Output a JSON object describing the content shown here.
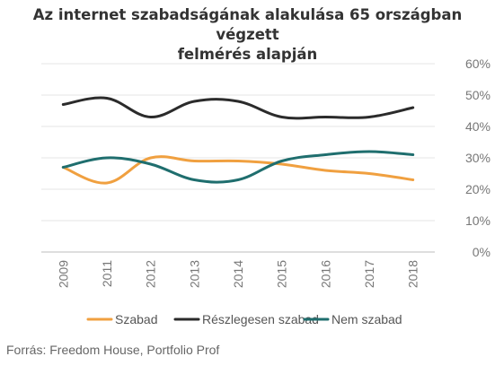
{
  "title_line1": "Az internet szabadságának alakulása 65 országban végzett",
  "title_line2": "felmérés alapján",
  "source": "Forrás: Freedom House, Portfolio Prof",
  "chart_data": {
    "type": "line",
    "title": "Az internet szabadságának alakulása 65 országban végzett felmérés alapján",
    "categories": [
      "2009",
      "2011",
      "2012",
      "2013",
      "2014",
      "2015",
      "2016",
      "2017",
      "2018"
    ],
    "series": [
      {
        "name": "Szabad",
        "color": "#F0A040",
        "values": [
          27,
          22,
          30,
          29,
          29,
          28,
          26,
          25,
          23
        ]
      },
      {
        "name": "Részlegesen szabad",
        "color": "#2B2B2B",
        "values": [
          47,
          49,
          43,
          48,
          48,
          43,
          43,
          43,
          46
        ]
      },
      {
        "name": "Nem szabad",
        "color": "#1F6E6E",
        "values": [
          27,
          30,
          28,
          23,
          23,
          29,
          31,
          32,
          31
        ]
      }
    ],
    "y_ticks": [
      "0%",
      "10%",
      "20%",
      "30%",
      "40%",
      "50%",
      "60%"
    ],
    "ylim": [
      0,
      60
    ],
    "y_axis_position": "right",
    "grid": true,
    "legend_position": "bottom"
  }
}
